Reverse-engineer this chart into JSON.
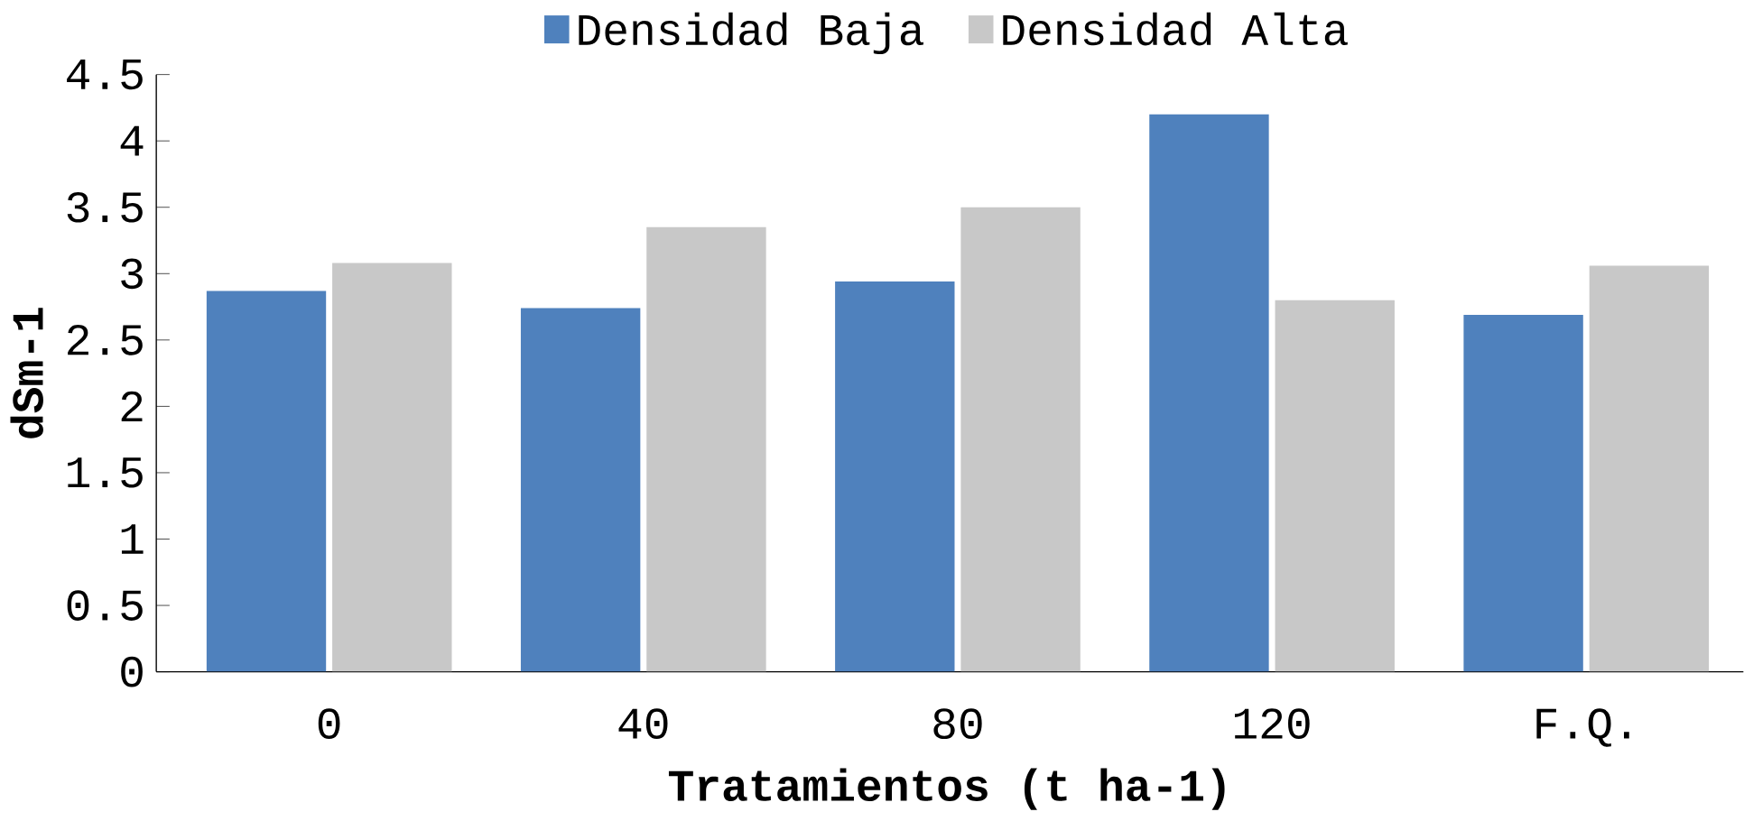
{
  "chart_data": {
    "type": "bar",
    "xlabel": "Tratamientos (t ha-1)",
    "ylabel": "dSm-1",
    "categories": [
      "0",
      "40",
      "80",
      "120",
      "F.Q."
    ],
    "series": [
      {
        "name": "Densidad Baja",
        "color": "#4f81bd",
        "values": [
          2.87,
          2.74,
          2.94,
          4.2,
          2.69
        ]
      },
      {
        "name": "Densidad Alta",
        "color": "#c8c8c8",
        "values": [
          3.08,
          3.35,
          3.5,
          2.8,
          3.06
        ]
      }
    ],
    "ylim": [
      0,
      4.5
    ],
    "yticks": [
      0,
      0.5,
      1,
      1.5,
      2,
      2.5,
      3,
      3.5,
      4,
      4.5
    ],
    "legend": "top",
    "grid": false
  }
}
